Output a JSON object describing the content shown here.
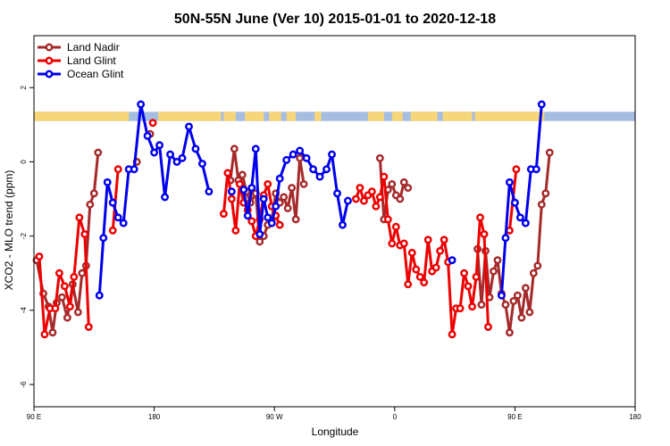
{
  "chart_data": {
    "type": "line",
    "title": "50N-55N June (Ver 10)   2015-01-01 to 2020-12-18",
    "xlabel": "Longitude",
    "ylabel": "XCO2 - MLO trend (ppm)",
    "x_ticks": [
      {
        "x": 90,
        "label": "90 E"
      },
      {
        "x": 180,
        "label": "180"
      },
      {
        "x": 270,
        "label": "90 W"
      },
      {
        "x": 360,
        "label": "0"
      },
      {
        "x": 450,
        "label": "90 E"
      },
      {
        "x": 540,
        "label": "180"
      }
    ],
    "y_ticks": [
      -6,
      -4,
      -2,
      0,
      2
    ],
    "xlim": [
      90,
      540
    ],
    "ylim": [
      -6.6,
      3.4
    ],
    "legend_position": "top-left",
    "series": [
      {
        "name": "Land Nadir",
        "color": "#a52a2a",
        "points": [
          [
            92,
            -2.65
          ],
          [
            97,
            -3.55
          ],
          [
            101,
            -3.9
          ],
          [
            104,
            -4.6
          ],
          [
            107,
            -3.8
          ],
          [
            111,
            -3.65
          ],
          [
            115,
            -4.2
          ],
          [
            119,
            -3.3
          ],
          [
            123,
            -4.05
          ],
          [
            126,
            -3.0
          ],
          [
            129,
            -2.8
          ],
          [
            132,
            -1.15
          ],
          [
            135,
            -0.85
          ],
          [
            138,
            0.25
          ],
          [
            167,
            0.0
          ],
          [
            177,
            0.75
          ],
          [
            237,
            -0.5
          ],
          [
            240,
            0.35
          ],
          [
            243,
            -0.5
          ],
          [
            246,
            -0.35
          ],
          [
            249,
            -0.8
          ],
          [
            252,
            -1.1
          ],
          [
            256,
            -0.85
          ],
          [
            259,
            -2.15
          ],
          [
            262,
            -2.0
          ],
          [
            265,
            -1.7
          ],
          [
            268,
            -1.55
          ],
          [
            271,
            -0.85
          ],
          [
            274,
            -1.1
          ],
          [
            277,
            -0.95
          ],
          [
            280,
            -1.25
          ],
          [
            283,
            -0.7
          ],
          [
            286,
            -1.55
          ],
          [
            289,
            0.1
          ],
          [
            292,
            -0.6
          ],
          [
            349,
            0.1
          ],
          [
            352,
            -1.55
          ],
          [
            355,
            -0.75
          ],
          [
            358,
            -0.6
          ],
          [
            361,
            -0.9
          ],
          [
            364,
            -1.0
          ],
          [
            367,
            -0.55
          ],
          [
            370,
            -0.7
          ],
          [
            422,
            -2.35
          ],
          [
            425,
            -3.85
          ],
          [
            428,
            -2.4
          ],
          [
            431,
            -3.65
          ],
          [
            434,
            -2.95
          ],
          [
            437,
            -2.65
          ],
          [
            440,
            -3.55
          ],
          [
            443,
            -3.85
          ],
          [
            446,
            -4.6
          ],
          [
            449,
            -3.75
          ],
          [
            452,
            -3.6
          ],
          [
            455,
            -4.2
          ],
          [
            458,
            -3.4
          ],
          [
            461,
            -4.05
          ],
          [
            464,
            -3.0
          ],
          [
            467,
            -2.8
          ],
          [
            470,
            -1.15
          ],
          [
            473,
            -0.85
          ],
          [
            476,
            0.25
          ]
        ]
      },
      {
        "name": "Land Glint",
        "color": "#ee0000",
        "points": [
          [
            94,
            -2.55
          ],
          [
            98,
            -4.65
          ],
          [
            102,
            -3.95
          ],
          [
            106,
            -3.95
          ],
          [
            109,
            -3.0
          ],
          [
            113,
            -3.35
          ],
          [
            117,
            -3.9
          ],
          [
            120,
            -3.1
          ],
          [
            124,
            -1.5
          ],
          [
            128,
            -1.95
          ],
          [
            131,
            -4.45
          ],
          [
            149,
            -1.85
          ],
          [
            153,
            -0.2
          ],
          [
            179,
            1.05
          ],
          [
            232,
            -1.4
          ],
          [
            235,
            -0.3
          ],
          [
            238,
            -1.0
          ],
          [
            241,
            -1.85
          ],
          [
            244,
            -0.6
          ],
          [
            247,
            -1.1
          ],
          [
            250,
            -1.3
          ],
          [
            253,
            -1.6
          ],
          [
            256,
            -2.0
          ],
          [
            259,
            -1.55
          ],
          [
            262,
            -0.9
          ],
          [
            265,
            -0.6
          ],
          [
            268,
            -1.2
          ],
          [
            271,
            -1.45
          ],
          [
            274,
            -1.7
          ],
          [
            331,
            -1.0
          ],
          [
            334,
            -0.7
          ],
          [
            337,
            -1.05
          ],
          [
            340,
            -0.9
          ],
          [
            343,
            -0.8
          ],
          [
            346,
            -1.2
          ],
          [
            349,
            -0.95
          ],
          [
            352,
            -0.4
          ],
          [
            355,
            -1.55
          ],
          [
            358,
            -2.2
          ],
          [
            361,
            -1.75
          ],
          [
            364,
            -2.25
          ],
          [
            367,
            -2.2
          ],
          [
            370,
            -3.3
          ],
          [
            373,
            -2.45
          ],
          [
            376,
            -2.9
          ],
          [
            379,
            -3.1
          ],
          [
            382,
            -3.25
          ],
          [
            385,
            -2.1
          ],
          [
            388,
            -2.95
          ],
          [
            391,
            -2.85
          ],
          [
            394,
            -2.4
          ],
          [
            397,
            -2.1
          ],
          [
            400,
            -2.7
          ],
          [
            403,
            -4.65
          ],
          [
            406,
            -3.95
          ],
          [
            409,
            -3.95
          ],
          [
            412,
            -3.0
          ],
          [
            415,
            -3.35
          ],
          [
            418,
            -3.9
          ],
          [
            421,
            -3.1
          ],
          [
            424,
            -1.5
          ],
          [
            427,
            -1.95
          ],
          [
            430,
            -4.45
          ],
          [
            446,
            -1.85
          ],
          [
            451,
            -0.2
          ]
        ]
      },
      {
        "name": "Ocean Glint",
        "color": "#0000ee",
        "points": [
          [
            139,
            -3.6
          ],
          [
            142,
            -2.05
          ],
          [
            145,
            -0.55
          ],
          [
            149,
            -1.1
          ],
          [
            153,
            -1.5
          ],
          [
            157,
            -1.65
          ],
          [
            161,
            -0.2
          ],
          [
            165,
            -0.2
          ],
          [
            170,
            1.55
          ],
          [
            175,
            0.7
          ],
          [
            180,
            0.25
          ],
          [
            184,
            0.45
          ],
          [
            188,
            -0.95
          ],
          [
            192,
            0.2
          ],
          [
            197,
            0.0
          ],
          [
            201,
            0.1
          ],
          [
            206,
            0.95
          ],
          [
            211,
            0.35
          ],
          [
            216,
            -0.05
          ],
          [
            221,
            -0.8
          ],
          [
            238,
            -0.8
          ],
          [
            247,
            -0.75
          ],
          [
            250,
            -1.45
          ],
          [
            253,
            -0.7
          ],
          [
            256,
            0.35
          ],
          [
            259,
            -1.95
          ],
          [
            262,
            -1.0
          ],
          [
            265,
            -1.5
          ],
          [
            268,
            -1.65
          ],
          [
            271,
            -1.2
          ],
          [
            274,
            -0.45
          ],
          [
            279,
            0.05
          ],
          [
            284,
            0.2
          ],
          [
            289,
            0.3
          ],
          [
            294,
            0.1
          ],
          [
            299,
            -0.2
          ],
          [
            304,
            -0.4
          ],
          [
            309,
            -0.2
          ],
          [
            313,
            0.2
          ],
          [
            317,
            -0.85
          ],
          [
            321,
            -1.7
          ],
          [
            325,
            -1.05
          ],
          [
            403,
            -2.65
          ],
          [
            440,
            -3.6
          ],
          [
            443,
            -2.05
          ],
          [
            446,
            -0.55
          ],
          [
            450,
            -1.1
          ],
          [
            454,
            -1.5
          ],
          [
            458,
            -1.65
          ],
          [
            462,
            -0.2
          ],
          [
            466,
            -0.2
          ],
          [
            470,
            1.55
          ]
        ]
      }
    ],
    "land_mask_band": {
      "y_top": 1.35,
      "y_bottom": 1.1,
      "land_color": "#f7d67a",
      "ocean_color": "#a4bde0",
      "land_ranges": [
        [
          90,
          150
        ],
        [
          150,
          161
        ],
        [
          183,
          230
        ],
        [
          232,
          241
        ],
        [
          248,
          262
        ],
        [
          266,
          275
        ],
        [
          279,
          286
        ],
        [
          300,
          305
        ],
        [
          340,
          352
        ],
        [
          358,
          366
        ],
        [
          372,
          392
        ],
        [
          396,
          418
        ],
        [
          420,
          472
        ]
      ]
    }
  }
}
